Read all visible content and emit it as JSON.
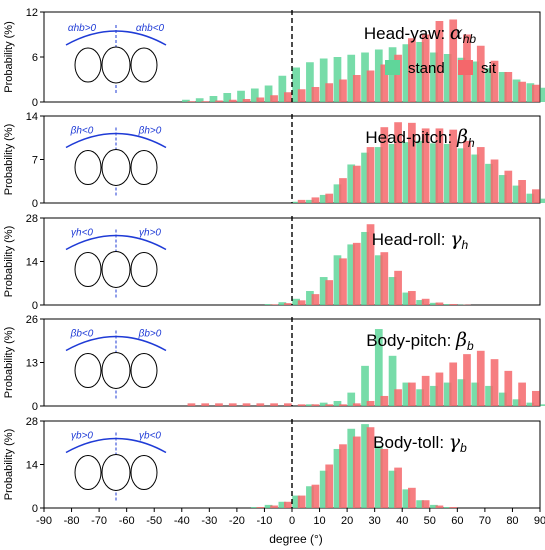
{
  "colors": {
    "stand": "#5fd69a",
    "sit": "#f4676b",
    "zero_line": "#000000",
    "illustration": "#1f3bd6"
  },
  "legend": {
    "stand": "stand",
    "sit": "sit",
    "placement": "top-right of first panel"
  },
  "chart_data": {
    "type": "bar",
    "shared_x": {
      "label": "degree (°)",
      "range": [
        -90,
        90
      ],
      "bin_width": 5,
      "ticks": [
        "-90",
        "-80",
        "-70",
        "-60",
        "-50",
        "-40",
        "-30",
        "-20",
        "-10",
        "0",
        "10",
        "20",
        "30",
        "40",
        "50",
        "60",
        "70",
        "80",
        "90"
      ],
      "bins_start": -40,
      "reference_line": 0
    },
    "panels": [
      {
        "id": "head-yaw",
        "title_text": "Head-yaw",
        "title_symbol": "α",
        "title_sub": "hb",
        "ylabel": "Probability (%)",
        "ylim": [
          0,
          12
        ],
        "yticks": [
          "0",
          "6",
          "12"
        ],
        "illustration_labels": [
          "αhb>0",
          "αhb<0"
        ],
        "series": [
          {
            "name": "stand",
            "values": [
              0.3,
              0.5,
              0.8,
              1.2,
              1.5,
              1.8,
              2.2,
              3.5,
              4.6,
              5.3,
              5.8,
              6.0,
              6.3,
              6.6,
              7.0,
              7.3,
              7.7,
              8.0,
              6.6,
              6.4,
              5.9,
              5.4,
              4.5,
              4.0,
              3.0,
              2.5,
              1.9,
              1.5,
              1.0,
              0.7,
              0.5,
              0.3
            ]
          },
          {
            "name": "sit",
            "values": [
              0.1,
              0.1,
              0.2,
              0.3,
              0.4,
              0.6,
              0.9,
              1.3,
              1.7,
              2.0,
              2.5,
              3.0,
              3.6,
              4.2,
              5.0,
              6.3,
              8.5,
              9.0,
              10.8,
              11.0,
              9.0,
              7.5,
              5.5,
              4.0,
              2.7,
              2.3,
              1.7,
              1.0,
              0.6,
              0.3,
              0.2,
              0.1
            ]
          }
        ]
      },
      {
        "id": "head-pitch",
        "title_text": "Head-pitch",
        "title_symbol": "β",
        "title_sub": "h",
        "ylabel": "Probability (%)",
        "ylim": [
          0,
          14
        ],
        "yticks": [
          "0",
          "7",
          "14"
        ],
        "illustration_labels": [
          "βh<0",
          "βh>0"
        ],
        "series": [
          {
            "name": "stand",
            "values": [
              0,
              0,
              0,
              0,
              0,
              0,
              0,
              0,
              0.2,
              0.5,
              1.3,
              3.0,
              6.2,
              8.1,
              9.0,
              9.5,
              9.8,
              10.0,
              9.6,
              9.5,
              8.8,
              7.8,
              6.3,
              4.5,
              2.8,
              1.5,
              0.7,
              0.3,
              0.1,
              0,
              0,
              0
            ]
          },
          {
            "name": "sit",
            "values": [
              0,
              0,
              0,
              0,
              0,
              0,
              0,
              0,
              0.5,
              0.9,
              1.5,
              4.0,
              6.0,
              9.0,
              12.2,
              13.0,
              12.9,
              12.0,
              12.0,
              11.8,
              10.0,
              9.0,
              7.0,
              5.2,
              3.7,
              2.2,
              1.2,
              0.5,
              0.2,
              0,
              0,
              0
            ]
          }
        ]
      },
      {
        "id": "head-roll",
        "title_text": "Head-roll",
        "title_symbol": "γ",
        "title_sub": "h",
        "ylabel": "Probability (%)",
        "ylim": [
          0,
          28
        ],
        "yticks": [
          "0",
          "14",
          "28"
        ],
        "illustration_labels": [
          "γh<0",
          "γh>0"
        ],
        "series": [
          {
            "name": "stand",
            "values": [
              0,
              0,
              0,
              0,
              0,
              0,
              0.3,
              0.9,
              2.0,
              4.5,
              9.0,
              16.0,
              19.5,
              23.5,
              16.0,
              9.0,
              4.0,
              1.6,
              0.7,
              0.3,
              0.1,
              0,
              0,
              0,
              0,
              0,
              0,
              0,
              0,
              0,
              0,
              0
            ]
          },
          {
            "name": "sit",
            "values": [
              0,
              0,
              0,
              0,
              0,
              0,
              0.2,
              0.6,
              1.5,
              3.5,
              8.0,
              15.0,
              20.0,
              26.0,
              17.0,
              11.0,
              4.5,
              2.0,
              0.8,
              0.3,
              0.1,
              0,
              0,
              0,
              0,
              0,
              0,
              0,
              0,
              0,
              0,
              0
            ]
          }
        ]
      },
      {
        "id": "body-pitch",
        "title_text": "Body-pitch",
        "title_symbol": "β",
        "title_sub": "b",
        "ylabel": "Probability (%)",
        "ylim": [
          0,
          26
        ],
        "yticks": [
          "0",
          "13",
          "26"
        ],
        "illustration_labels": [
          "βb<0",
          "βb>0"
        ],
        "series": [
          {
            "name": "stand",
            "values": [
              0,
              0,
              0,
              0,
              0,
              0,
              0,
              0,
              0,
              0.5,
              1.0,
              1.5,
              4.0,
              12.0,
              23.0,
              15.0,
              7.0,
              5.0,
              6.0,
              7.0,
              8.0,
              7.0,
              6.0,
              4.0,
              2.0,
              1.0,
              0.5,
              0.2,
              0,
              0,
              0,
              0
            ]
          },
          {
            "name": "sit",
            "values": [
              0.8,
              0.8,
              0.8,
              0.8,
              0.8,
              0.8,
              0.8,
              0.8,
              0.5,
              0.5,
              0.5,
              0.5,
              0.8,
              1.5,
              3.0,
              5.0,
              7.0,
              9.0,
              10.0,
              13.0,
              15.5,
              16.5,
              14.0,
              10.5,
              7.0,
              4.5,
              2.5,
              1.0,
              0.5,
              0,
              0,
              0
            ]
          }
        ]
      },
      {
        "id": "body-toll",
        "title_text": "Body-toll",
        "title_symbol": "γ",
        "title_sub": "b",
        "ylabel": "Probability (%)",
        "ylim": [
          0,
          28
        ],
        "yticks": [
          "0",
          "14",
          "28"
        ],
        "illustration_labels": [
          "γb>0",
          "γb<0"
        ],
        "series": [
          {
            "name": "stand",
            "values": [
              0,
              0,
              0,
              0,
              0,
              0.3,
              1.0,
              2.0,
              4.0,
              7.0,
              12.0,
              19.0,
              25.5,
              27.0,
              20.0,
              12.0,
              6.0,
              2.5,
              1.0,
              0.3,
              0,
              0,
              0,
              0,
              0,
              0,
              0,
              0,
              0,
              0,
              0,
              0
            ]
          },
          {
            "name": "sit",
            "values": [
              0,
              0,
              0,
              0,
              0,
              0.3,
              0.8,
              2.0,
              4.0,
              7.5,
              14.0,
              20.5,
              23.0,
              26.0,
              19.0,
              13.0,
              6.5,
              2.5,
              0.8,
              0.3,
              0,
              0,
              0,
              0,
              0,
              0,
              0,
              0,
              0,
              0,
              0,
              0
            ]
          }
        ]
      }
    ]
  }
}
